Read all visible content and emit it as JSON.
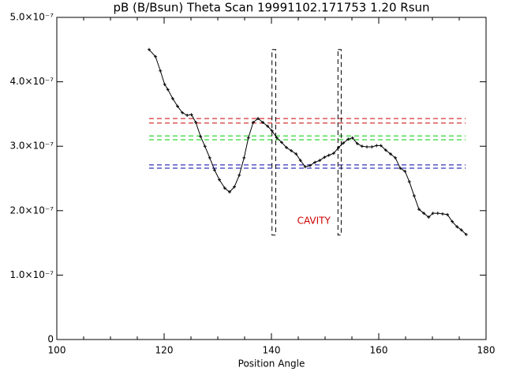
{
  "chart_data": {
    "type": "line",
    "title": "pB (B/Bsun) Theta Scan 19991102.171753 1.20 Rsun",
    "x_label": "Position Angle",
    "x": [
      117.2,
      118.4,
      119.3,
      120.1,
      120.7,
      121.6,
      122.5,
      123.4,
      124.3,
      125.1,
      125.9,
      126.8,
      127.6,
      128.5,
      129.4,
      130.3,
      131.3,
      132.2,
      133.1,
      134.0,
      134.9,
      135.7,
      136.6,
      137.5,
      138.4,
      139.3,
      140.1,
      141.0,
      141.9,
      142.8,
      143.7,
      144.6,
      145.4,
      146.3,
      147.2,
      148.1,
      149.0,
      149.9,
      150.7,
      151.6,
      152.5,
      153.4,
      154.3,
      155.1,
      156.0,
      156.9,
      157.8,
      158.7,
      159.6,
      160.4,
      161.3,
      162.2,
      163.1,
      164.0,
      164.9,
      165.7,
      166.6,
      167.5,
      168.4,
      169.3,
      170.1,
      171.0,
      171.9,
      172.8,
      173.7,
      174.6,
      175.4,
      176.3
    ],
    "series": [
      {
        "color": "#000000",
        "values": [
          4.5e-07,
          4.39e-07,
          4.17e-07,
          3.96e-07,
          3.88e-07,
          3.74e-07,
          3.62e-07,
          3.52e-07,
          3.48e-07,
          3.49e-07,
          3.37e-07,
          3.15e-07,
          3e-07,
          2.82e-07,
          2.63e-07,
          2.48e-07,
          2.35e-07,
          2.29e-07,
          2.37e-07,
          2.55e-07,
          2.82e-07,
          3.13e-07,
          3.37e-07,
          3.43e-07,
          3.37e-07,
          3.31e-07,
          3.24e-07,
          3.13e-07,
          3.06e-07,
          2.98e-07,
          2.93e-07,
          2.88e-07,
          2.78e-07,
          2.68e-07,
          2.7e-07,
          2.75e-07,
          2.78e-07,
          2.83e-07,
          2.86e-07,
          2.89e-07,
          2.98e-07,
          3.05e-07,
          3.11e-07,
          3.13e-07,
          3.04e-07,
          3e-07,
          2.99e-07,
          2.99e-07,
          3.01e-07,
          3.01e-07,
          2.94e-07,
          2.88e-07,
          2.82e-07,
          2.66e-07,
          2.61e-07,
          2.45e-07,
          2.23e-07,
          2.02e-07,
          1.96e-07,
          1.9e-07,
          1.96e-07,
          1.96e-07,
          1.95e-07,
          1.94e-07,
          1.83e-07,
          1.75e-07,
          1.7e-07,
          1.63e-07
        ]
      }
    ],
    "xlim": [
      100,
      180
    ],
    "xticks": [
      100,
      120,
      140,
      160,
      180
    ],
    "xminorticks": [
      105,
      110,
      115,
      125,
      130,
      135,
      145,
      150,
      155,
      165,
      170,
      175
    ],
    "ylim": [
      0,
      5e-07
    ],
    "yticks": [
      0,
      {
        "value": 1e-07,
        "label": "1.0×10⁻⁷"
      },
      {
        "value": 2e-07,
        "label": "2.0×10⁻⁷"
      },
      {
        "value": 3e-07,
        "label": "3.0×10⁻⁷"
      },
      {
        "value": 4e-07,
        "label": "4.0×10⁻⁷"
      },
      {
        "value": 5e-07,
        "label": "5.0×10⁻⁷"
      }
    ],
    "hlines": [
      {
        "color": "#cc0000",
        "y": 3.43e-07,
        "x": [
          117.2,
          176.2
        ]
      },
      {
        "color": "#cc0000",
        "y": 3.36e-07,
        "x": [
          117.2,
          176.2
        ]
      },
      {
        "color": "#00cc00",
        "y": 3.16e-07,
        "x": [
          117.2,
          176.2
        ]
      },
      {
        "color": "#00cc00",
        "y": 3.1e-07,
        "x": [
          117.2,
          176.2
        ]
      },
      {
        "color": "#0000aa",
        "y": 2.71e-07,
        "x": [
          117.2,
          176.2
        ]
      },
      {
        "color": "#0000aa",
        "y": 2.66e-07,
        "x": [
          117.2,
          176.2
        ]
      }
    ],
    "vboxes": [
      {
        "color": "#000000",
        "x": [
          140.1,
          140.8
        ],
        "y": [
          1.62e-07,
          4.5e-07
        ]
      },
      {
        "color": "#000000",
        "x": [
          152.4,
          153.0
        ],
        "y": [
          1.62e-07,
          4.5e-07
        ]
      }
    ],
    "annotations": [
      {
        "text": "CAVITY",
        "x": 147.9,
        "y": 1.84e-07,
        "color": "#cc0000"
      }
    ]
  }
}
